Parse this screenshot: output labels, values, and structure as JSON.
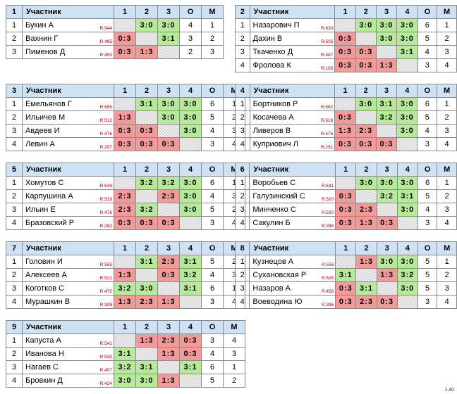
{
  "groups": [
    {
      "n": "1",
      "header": [
        "Участник",
        "1",
        "2",
        "3",
        "О",
        "М"
      ],
      "rows": [
        {
          "i": "1",
          "name": "Букин А",
          "rating": "R:944",
          "cells": [
            "x",
            "3:0",
            "3:0"
          ],
          "o": "4",
          "m": "1"
        },
        {
          "i": "2",
          "name": "Вахнин Г",
          "rating": "R:495",
          "cells": [
            "0:3",
            "x",
            "3:1"
          ],
          "o": "3",
          "m": "2"
        },
        {
          "i": "3",
          "name": "Пименов Д",
          "rating": "R:493",
          "cells": [
            "0:3",
            "1:3",
            "x"
          ],
          "o": "2",
          "m": "3"
        }
      ]
    },
    {
      "n": "2",
      "header": [
        "Участник",
        "1",
        "2",
        "3",
        "4",
        "О",
        "М"
      ],
      "rows": [
        {
          "i": "1",
          "name": "Назарович П",
          "rating": "R:830",
          "cells": [
            "x",
            "3:0",
            "3:0",
            "3:0"
          ],
          "o": "6",
          "m": "1"
        },
        {
          "i": "2",
          "name": "Дахин В",
          "rating": "R:505",
          "cells": [
            "0:3",
            "x",
            "3:0",
            "3:0"
          ],
          "o": "5",
          "m": "2"
        },
        {
          "i": "3",
          "name": "Ткаченко Д",
          "rating": "R:487",
          "cells": [
            "0:3",
            "0:3",
            "x",
            "3:1"
          ],
          "o": "4",
          "m": "3"
        },
        {
          "i": "4",
          "name": "Фролова К",
          "rating": "R:165",
          "cells": [
            "0:3",
            "0:3",
            "1:3",
            "x"
          ],
          "o": "3",
          "m": "4"
        }
      ]
    },
    {
      "n": "3",
      "header": [
        "Участник",
        "1",
        "2",
        "3",
        "4",
        "О",
        "М"
      ],
      "rows": [
        {
          "i": "1",
          "name": "Емельянов Г",
          "rating": "R:685",
          "cells": [
            "x",
            "3:1",
            "3:0",
            "3:0"
          ],
          "o": "6",
          "m": "1"
        },
        {
          "i": "2",
          "name": "Ильичев М",
          "rating": "R:512",
          "cells": [
            "1:3",
            "x",
            "3:0",
            "3:0"
          ],
          "o": "5",
          "m": "2"
        },
        {
          "i": "3",
          "name": "Авдеев И",
          "rating": "R:476",
          "cells": [
            "0:3",
            "0:3",
            "x",
            "3:0"
          ],
          "o": "4",
          "m": "3"
        },
        {
          "i": "4",
          "name": "Левин А",
          "rating": "R:207",
          "cells": [
            "0:3",
            "0:3",
            "0:3",
            "x"
          ],
          "o": "3",
          "m": "4"
        }
      ]
    },
    {
      "n": "4",
      "header": [
        "Участник",
        "1",
        "2",
        "3",
        "4",
        "О",
        "М"
      ],
      "rows": [
        {
          "i": "1",
          "name": "Бортников Р",
          "rating": "R:682",
          "cells": [
            "x",
            "3:0",
            "3:1",
            "3:0"
          ],
          "o": "6",
          "m": "1"
        },
        {
          "i": "2",
          "name": "Косачева А",
          "rating": "R:516",
          "cells": [
            "0:3",
            "x",
            "3:2",
            "3:0"
          ],
          "o": "5",
          "m": "2"
        },
        {
          "i": "3",
          "name": "Ливеров В",
          "rating": "R:476",
          "cells": [
            "1:3",
            "2:3",
            "x",
            "3:0"
          ],
          "o": "4",
          "m": "3"
        },
        {
          "i": "4",
          "name": "Куприович Л",
          "rating": "R:251",
          "cells": [
            "0:3",
            "0:3",
            "0:3",
            "x"
          ],
          "o": "3",
          "m": "4"
        }
      ]
    },
    {
      "n": "5",
      "header": [
        "Участник",
        "1",
        "2",
        "3",
        "4",
        "О",
        "М"
      ],
      "rows": [
        {
          "i": "1",
          "name": "Хомутов С",
          "rating": "R:649",
          "cells": [
            "x",
            "3:2",
            "3:2",
            "3:0"
          ],
          "o": "6",
          "m": "1"
        },
        {
          "i": "2",
          "name": "Карпушина А",
          "rating": "R:519",
          "cells": [
            "2:3",
            "x",
            "2:3",
            "3:0"
          ],
          "o": "4",
          "m": "3"
        },
        {
          "i": "3",
          "name": "Ильин Е",
          "rating": "R:476",
          "cells": [
            "2:3",
            "3:2",
            "x",
            "3:0"
          ],
          "o": "5",
          "m": "2"
        },
        {
          "i": "4",
          "name": "Бразовский Р",
          "rating": "R:282",
          "cells": [
            "0:3",
            "0:3",
            "0:3",
            "x"
          ],
          "o": "3",
          "m": "4"
        }
      ]
    },
    {
      "n": "6",
      "header": [
        "Участник",
        "1",
        "2",
        "3",
        "4",
        "О",
        "М"
      ],
      "rows": [
        {
          "i": "1",
          "name": "Воробьев С",
          "rating": "R:641",
          "cells": [
            "x",
            "3:0",
            "3:0",
            "3:0"
          ],
          "o": "6",
          "m": "1"
        },
        {
          "i": "2",
          "name": "Галузинский С",
          "rating": "R:520",
          "cells": [
            "0:3",
            "x",
            "3:2",
            "3:1"
          ],
          "o": "5",
          "m": "2"
        },
        {
          "i": "3",
          "name": "Минченко С",
          "rating": "R:520",
          "cells": [
            "0:3",
            "2:3",
            "x",
            "3:0"
          ],
          "o": "4",
          "m": "3"
        },
        {
          "i": "4",
          "name": "Сакулин Б",
          "rating": "R:288",
          "cells": [
            "0:3",
            "1:3",
            "0:3",
            "x"
          ],
          "o": "3",
          "m": "4"
        }
      ]
    },
    {
      "n": "7",
      "header": [
        "Участник",
        "1",
        "2",
        "3",
        "4",
        "О",
        "М"
      ],
      "rows": [
        {
          "i": "1",
          "name": "Головин И",
          "rating": "R:565",
          "cells": [
            "x",
            "3:1",
            "2:3",
            "3:1"
          ],
          "o": "5",
          "m": "2"
        },
        {
          "i": "2",
          "name": "Алексеев А",
          "rating": "R:521",
          "cells": [
            "1:3",
            "x",
            "0:3",
            "3:2"
          ],
          "o": "4",
          "m": "3"
        },
        {
          "i": "3",
          "name": "Коготков С",
          "rating": "R:472",
          "cells": [
            "3:2",
            "3:0",
            "x",
            "3:1"
          ],
          "o": "6",
          "m": "1"
        },
        {
          "i": "4",
          "name": "Мурашкин В",
          "rating": "R:309",
          "cells": [
            "1:3",
            "2:3",
            "1:3",
            "x"
          ],
          "o": "3",
          "m": "4"
        }
      ]
    },
    {
      "n": "8",
      "header": [
        "Участник",
        "1",
        "2",
        "3",
        "4",
        "О",
        "М"
      ],
      "rows": [
        {
          "i": "1",
          "name": "Кузнецов А",
          "rating": "R:556",
          "cells": [
            "x",
            "1:3",
            "3:0",
            "3:0"
          ],
          "o": "5",
          "m": "1"
        },
        {
          "i": "2",
          "name": "Сухановская Р",
          "rating": "R:525",
          "cells": [
            "3:1",
            "x",
            "1:3",
            "3:2"
          ],
          "o": "5",
          "m": "2"
        },
        {
          "i": "3",
          "name": "Назаров А",
          "rating": "R:458",
          "cells": [
            "0:3",
            "3:1",
            "x",
            "3:0"
          ],
          "o": "5",
          "m": "3"
        },
        {
          "i": "4",
          "name": "Воеводина Ю",
          "rating": "R:396",
          "cells": [
            "0:3",
            "2:3",
            "0:3",
            "x"
          ],
          "o": "3",
          "m": "4"
        }
      ]
    },
    {
      "n": "9",
      "header": [
        "Участник",
        "1",
        "2",
        "3",
        "4",
        "О",
        "М"
      ],
      "rows": [
        {
          "i": "1",
          "name": "Капуста А",
          "rating": "R:541",
          "cells": [
            "x",
            "1:3",
            "2:3",
            "0:3"
          ],
          "o": "3",
          "m": "4"
        },
        {
          "i": "2",
          "name": "Иванова Н",
          "rating": "R:530",
          "cells": [
            "3:1",
            "x",
            "1:3",
            "0:3"
          ],
          "o": "4",
          "m": "3"
        },
        {
          "i": "3",
          "name": "Нагаев С",
          "rating": "R:457",
          "cells": [
            "3:2",
            "3:1",
            "x",
            "3:1"
          ],
          "o": "6",
          "m": "1"
        },
        {
          "i": "4",
          "name": "Бровкин Д",
          "rating": "R:424",
          "cells": [
            "3:0",
            "3:0",
            "1:3",
            "x"
          ],
          "o": "5",
          "m": "2"
        }
      ]
    }
  ],
  "version": "1.40"
}
